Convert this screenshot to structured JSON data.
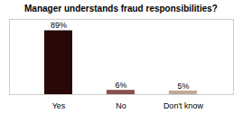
{
  "chart_data": {
    "type": "bar",
    "title": "Manager understands fraud responsibilities?",
    "categories": [
      "Yes",
      "No",
      "Don't know"
    ],
    "values": [
      89,
      6,
      5
    ],
    "value_labels": [
      "89%",
      "6%",
      "5%"
    ],
    "colors": [
      "#2b0808",
      "#8b5050",
      "#c4a898"
    ],
    "ylim": [
      0,
      105
    ],
    "grid": false,
    "data_labels": true,
    "tick_labels": "x"
  }
}
